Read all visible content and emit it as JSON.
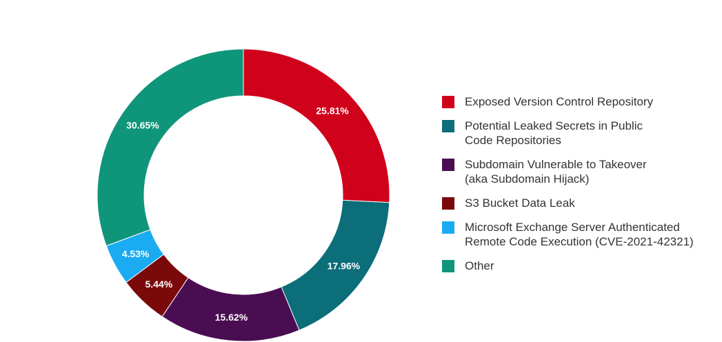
{
  "chart_data": {
    "type": "pie",
    "donut": true,
    "title": "",
    "categories": [
      "Exposed Version Control Repository",
      "Potential Leaked Secrets in Public Code Repositories",
      "Subdomain Vulnerable to Takeover (aka Subdomain Hijack)",
      "S3 Bucket Data Leak",
      "Microsoft Exchange Server Authenticated Remote Code Execution (CVE-2021-42321)",
      "Other"
    ],
    "values": [
      25.81,
      17.96,
      15.62,
      5.44,
      4.53,
      30.65
    ],
    "value_labels": [
      "25.81%",
      "17.96%",
      "15.62%",
      "5.44%",
      "4.53%",
      "30.65%"
    ],
    "colors": [
      "#d0021b",
      "#0b6e79",
      "#4a0d52",
      "#7a0a0a",
      "#1aabf2",
      "#0f957a"
    ],
    "legend_position": "right",
    "legend": [
      {
        "label": "Exposed Version Control Repository",
        "color": "#d0021b"
      },
      {
        "label": "Potential Leaked Secrets in Public\nCode Repositories",
        "color": "#0b6e79"
      },
      {
        "label": "Subdomain Vulnerable to Takeover\n(aka Subdomain Hijack)",
        "color": "#4a0d52"
      },
      {
        "label": "S3 Bucket Data Leak",
        "color": "#7a0a0a"
      },
      {
        "label": "Microsoft Exchange Server Authenticated\nRemote Code Execution (CVE-2021-42321)",
        "color": "#1aabf2"
      },
      {
        "label": "Other",
        "color": "#0f957a"
      }
    ]
  }
}
